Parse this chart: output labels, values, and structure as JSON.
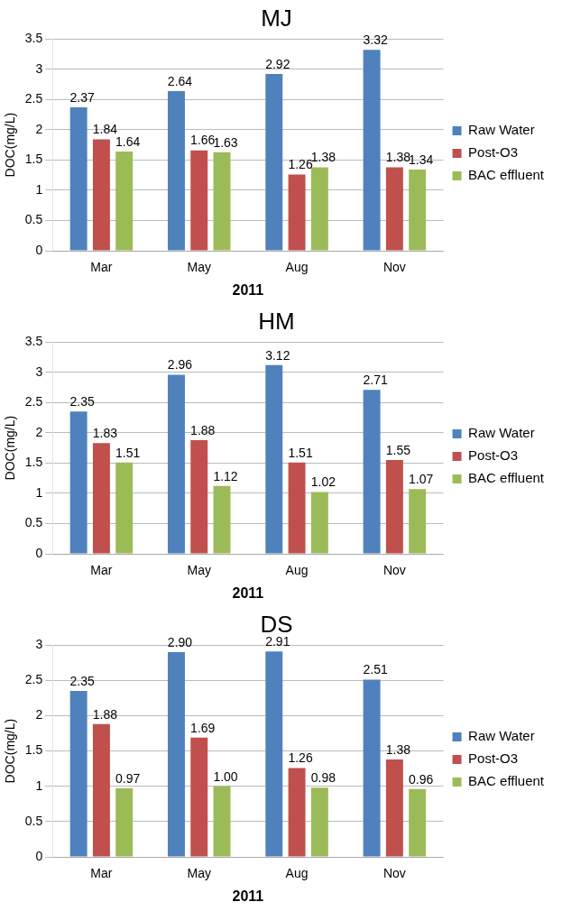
{
  "chart_data": [
    {
      "type": "bar",
      "title": "MJ",
      "xlabel": "2011",
      "ylabel": "DOC(mg/L)",
      "categories": [
        "Mar",
        "May",
        "Aug",
        "Nov"
      ],
      "ylim": [
        0,
        3.5
      ],
      "yticks": [
        0,
        0.5,
        1,
        1.5,
        2,
        2.5,
        3,
        3.5
      ],
      "grid": "y",
      "legend": "right",
      "series": [
        {
          "name": "Raw Water",
          "color": "#4f81bd",
          "values": [
            2.37,
            2.64,
            2.92,
            3.32
          ],
          "value_labels": [
            "2.37",
            "2.64",
            "2.92",
            "3.32"
          ]
        },
        {
          "name": "Post-O3",
          "color": "#c0504d",
          "values": [
            1.84,
            1.66,
            1.26,
            1.38
          ],
          "value_labels": [
            "1.84",
            "1.66",
            "1.26",
            "1.38"
          ]
        },
        {
          "name": "BAC effluent",
          "color": "#9bbb59",
          "values": [
            1.64,
            1.63,
            1.38,
            1.34
          ],
          "value_labels": [
            "1.64",
            "1.63",
            "1.38",
            "1.34"
          ]
        }
      ]
    },
    {
      "type": "bar",
      "title": "HM",
      "xlabel": "2011",
      "ylabel": "DOC(mg/L)",
      "categories": [
        "Mar",
        "May",
        "Aug",
        "Nov"
      ],
      "ylim": [
        0,
        3.5
      ],
      "yticks": [
        0,
        0.5,
        1,
        1.5,
        2,
        2.5,
        3,
        3.5
      ],
      "grid": "y",
      "legend": "right",
      "series": [
        {
          "name": "Raw Water",
          "color": "#4f81bd",
          "values": [
            2.35,
            2.96,
            3.12,
            2.71
          ],
          "value_labels": [
            "2.35",
            "2.96",
            "3.12",
            "2.71"
          ]
        },
        {
          "name": "Post-O3",
          "color": "#c0504d",
          "values": [
            1.83,
            1.88,
            1.51,
            1.55
          ],
          "value_labels": [
            "1.83",
            "1.88",
            "1.51",
            "1.55"
          ]
        },
        {
          "name": "BAC effluent",
          "color": "#9bbb59",
          "values": [
            1.51,
            1.12,
            1.02,
            1.07
          ],
          "value_labels": [
            "1.51",
            "1.12",
            "1.02",
            "1.07"
          ]
        }
      ]
    },
    {
      "type": "bar",
      "title": "DS",
      "xlabel": "2011",
      "ylabel": "DOC(mg/L)",
      "categories": [
        "Mar",
        "May",
        "Aug",
        "Nov"
      ],
      "ylim": [
        0,
        3
      ],
      "yticks": [
        0,
        0.5,
        1,
        1.5,
        2,
        2.5,
        3
      ],
      "grid": "y",
      "legend": "right",
      "series": [
        {
          "name": "Raw Water",
          "color": "#4f81bd",
          "values": [
            2.35,
            2.9,
            2.91,
            2.51
          ],
          "value_labels": [
            "2.35",
            "2.90",
            "2.91",
            "2.51"
          ]
        },
        {
          "name": "Post-O3",
          "color": "#c0504d",
          "values": [
            1.88,
            1.69,
            1.26,
            1.38
          ],
          "value_labels": [
            "1.88",
            "1.69",
            "1.26",
            "1.38"
          ]
        },
        {
          "name": "BAC effluent",
          "color": "#9bbb59",
          "values": [
            0.97,
            1.0,
            0.98,
            0.96
          ],
          "value_labels": [
            "0.97",
            "1.00",
            "0.98",
            "0.96"
          ]
        }
      ]
    }
  ]
}
